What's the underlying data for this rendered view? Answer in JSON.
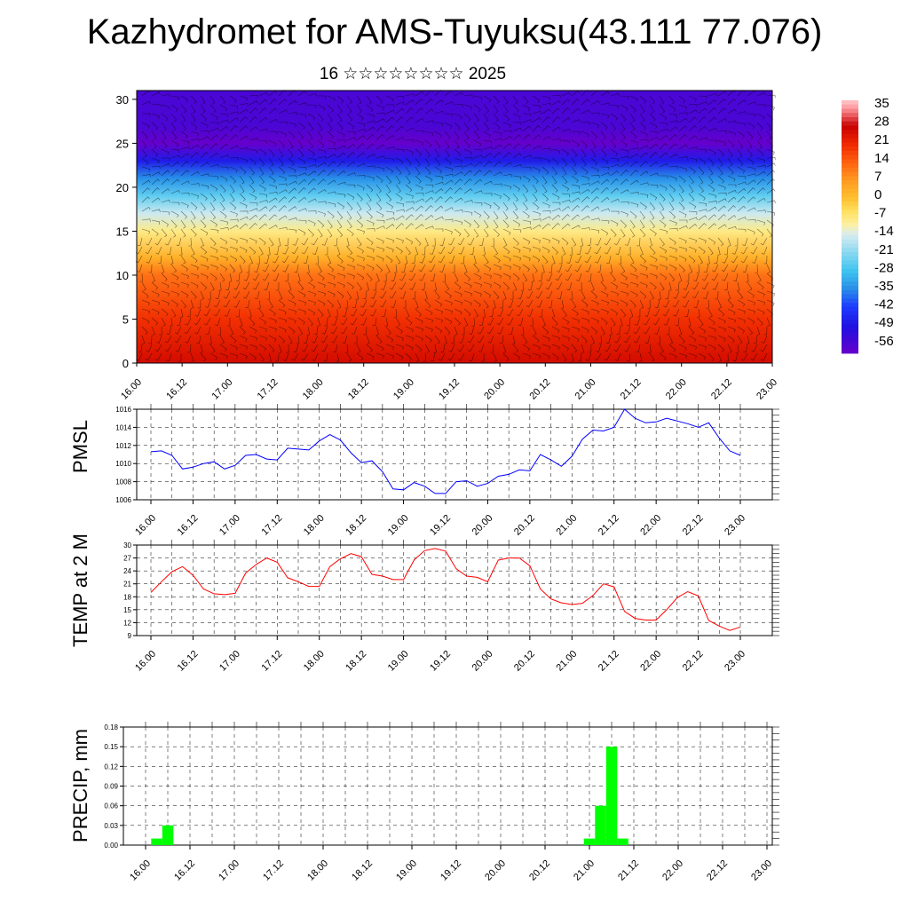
{
  "header": {
    "title": "Kazhydromet for AMS-Tuyuksu(43.111 77.076)",
    "subtitle": "16 ☆☆☆☆☆☆☆☆ 2025"
  },
  "time_ticks": [
    "16.00",
    "16.12",
    "17.00",
    "17.12",
    "18.00",
    "18.12",
    "19.00",
    "19.12",
    "20.00",
    "20.12",
    "21.00",
    "21.12",
    "22.00",
    "22.12",
    "23.00"
  ],
  "chart_data": [
    {
      "type": "heatmap",
      "title": "",
      "xlabel": "",
      "ylabel": "",
      "x": [
        "16.00",
        "16.12",
        "17.00",
        "17.12",
        "18.00",
        "18.12",
        "19.00",
        "19.12",
        "20.00",
        "20.12",
        "21.00",
        "21.12",
        "22.00",
        "22.12",
        "23.00"
      ],
      "yticks": [
        0,
        5,
        10,
        15,
        20,
        25,
        30
      ],
      "ylim": [
        0,
        31
      ],
      "colorbar": {
        "labels": [
          "35",
          "28",
          "21",
          "14",
          "7",
          "0",
          "-7",
          "-14",
          "-21",
          "-28",
          "-35",
          "-42",
          "-49",
          "-56"
        ],
        "range": [
          -60,
          38
        ]
      },
      "temperature_by_level": [
        {
          "level": 0,
          "value": 26
        },
        {
          "level": 5,
          "value": 20
        },
        {
          "level": 10,
          "value": 12
        },
        {
          "level": 12,
          "value": 3
        },
        {
          "level": 15,
          "value": -8
        },
        {
          "level": 17,
          "value": -15
        },
        {
          "level": 19,
          "value": -25
        },
        {
          "level": 21,
          "value": -35
        },
        {
          "level": 23,
          "value": -48
        },
        {
          "level": 25,
          "value": -60
        },
        {
          "level": 27,
          "value": -56
        },
        {
          "level": 31,
          "value": -56
        }
      ],
      "overlay": "wind barbs"
    },
    {
      "type": "line",
      "title": "",
      "ylabel": "PMSL",
      "ylim": [
        1006,
        1016
      ],
      "yticks": [
        1006,
        1008,
        1010,
        1012,
        1014,
        1016
      ],
      "series": [
        {
          "color": "#0000ff",
          "x_hours": [
            0,
            3,
            6,
            9,
            12,
            15,
            18,
            21,
            24,
            27,
            30,
            33,
            36,
            39,
            42,
            45,
            48,
            51,
            54,
            57,
            60,
            63,
            66,
            69,
            72,
            75,
            78,
            81,
            84,
            87,
            90,
            93,
            96,
            99,
            102,
            105,
            108,
            111,
            114,
            117,
            120,
            123,
            126,
            129,
            132,
            135,
            138,
            141,
            144,
            147,
            150,
            153,
            156,
            159,
            162,
            165,
            168
          ],
          "values": [
            1011.3,
            1011.4,
            1010.9,
            1009.4,
            1009.6,
            1010.0,
            1010.2,
            1009.4,
            1009.8,
            1010.9,
            1011.0,
            1010.5,
            1010.4,
            1011.7,
            1011.6,
            1011.5,
            1012.5,
            1013.2,
            1012.6,
            1011.2,
            1010.1,
            1010.3,
            1009.1,
            1007.2,
            1007.1,
            1007.9,
            1007.5,
            1006.7,
            1006.7,
            1008.0,
            1008.1,
            1007.5,
            1007.8,
            1008.6,
            1008.8,
            1009.3,
            1009.2,
            1011.0,
            1010.4,
            1009.7,
            1010.8,
            1012.7,
            1013.7,
            1013.6,
            1014.0,
            1016.0,
            1015.0,
            1014.5,
            1014.6,
            1015.0,
            1014.7,
            1014.4,
            1014.0,
            1014.5,
            1012.8,
            1011.4,
            1010.9
          ]
        }
      ]
    },
    {
      "type": "line",
      "title": "",
      "ylabel": "TEMP at 2 M",
      "ylim": [
        9,
        30
      ],
      "yticks": [
        9,
        12,
        15,
        18,
        21,
        24,
        27,
        30
      ],
      "series": [
        {
          "color": "#ff0000",
          "x_hours": [
            0,
            3,
            6,
            9,
            12,
            15,
            18,
            21,
            24,
            27,
            30,
            33,
            36,
            39,
            42,
            45,
            48,
            51,
            54,
            57,
            60,
            63,
            66,
            69,
            72,
            75,
            78,
            81,
            84,
            87,
            90,
            93,
            96,
            99,
            102,
            105,
            108,
            111,
            114,
            117,
            120,
            123,
            126,
            129,
            132,
            135,
            138,
            141,
            144,
            147,
            150,
            153,
            156,
            159,
            162,
            165,
            168
          ],
          "values": [
            19.0,
            21.5,
            23.8,
            25.0,
            23.0,
            19.8,
            18.7,
            18.5,
            18.8,
            23.5,
            25.5,
            27.0,
            26.0,
            22.4,
            21.5,
            20.4,
            20.4,
            25.0,
            26.8,
            28.0,
            27.3,
            23.2,
            22.8,
            22.0,
            22.0,
            26.5,
            28.7,
            29.2,
            28.6,
            24.5,
            22.8,
            22.5,
            21.5,
            26.5,
            27.0,
            27.0,
            25.2,
            19.8,
            17.5,
            16.6,
            16.2,
            16.5,
            18.3,
            21.0,
            20.3,
            14.6,
            13.0,
            12.6,
            12.6,
            15.0,
            17.8,
            19.2,
            18.2,
            12.5,
            11.2,
            10.2,
            11.0
          ]
        }
      ]
    },
    {
      "type": "bar",
      "title": "",
      "ylabel": "PRECIP, mm",
      "ylim": [
        0,
        0.18
      ],
      "yticks": [
        "0.00",
        "0.03",
        "0.06",
        "0.09",
        "0.12",
        "0.15",
        "0.18"
      ],
      "series": [
        {
          "color": "#00ff00",
          "x_hours": [
            3,
            6,
            120,
            123,
            126,
            129
          ],
          "values": [
            0.01,
            0.03,
            0.01,
            0.06,
            0.15,
            0.01
          ]
        }
      ]
    }
  ]
}
